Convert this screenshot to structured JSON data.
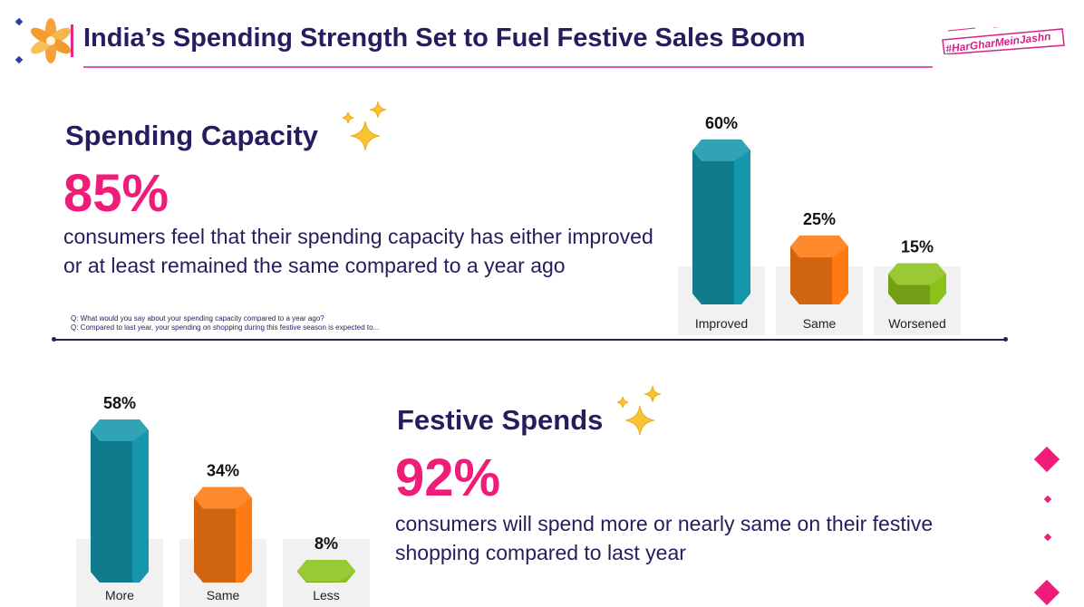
{
  "header": {
    "title": "India’s Spending Strength Set to Fuel Festive Sales Boom",
    "badge": "#HarGharMeinJashn",
    "logo_icon": "diya-flower-icon"
  },
  "spending_capacity": {
    "heading": "Spending Capacity",
    "stat": "85%",
    "description": "consumers feel that their spending capacity has either improved or at least remained the same compared to a year ago",
    "questions": [
      "Q: What would you say about your spending capacity compared to a year ago?",
      "Q: Compared to last year, your spending on shopping during this festive season is expected to..."
    ],
    "sparkle_icon": "sparkles-icon"
  },
  "festive_spends": {
    "heading": "Festive Spends",
    "stat": "92%",
    "description": "consumers will spend more or nearly same on their festive shopping compared to last year",
    "sparkle_icon": "sparkles-icon"
  },
  "colors": {
    "teal": "#1596ad",
    "orange": "#ff7a12",
    "green": "#8bc21a",
    "navy": "#2a1b5e",
    "pink": "#ef1c79"
  },
  "chart_data": [
    {
      "type": "bar",
      "categories": [
        "Improved",
        "Same",
        "Worsened"
      ],
      "values": [
        60,
        25,
        15
      ],
      "data_labels": [
        "60%",
        "25%",
        "15%"
      ],
      "unit": "%",
      "ylim": [
        0,
        60
      ],
      "grid": false
    },
    {
      "type": "bar",
      "categories": [
        "More",
        "Same",
        "Less"
      ],
      "values": [
        58,
        34,
        8
      ],
      "data_labels": [
        "58%",
        "34%",
        "8%"
      ],
      "unit": "%",
      "ylim": [
        0,
        58
      ],
      "grid": false
    }
  ]
}
